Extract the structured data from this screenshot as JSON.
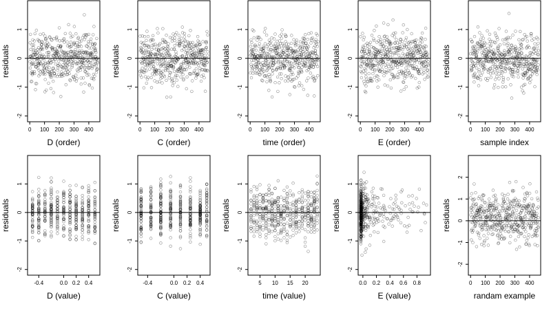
{
  "ylabel": "residuals",
  "chart_data": [
    {
      "type": "scatter",
      "xlabel": "D (order)",
      "ylabel": "residuals",
      "xlim": [
        -15,
        475
      ],
      "ylim": [
        -2.2,
        2.0
      ],
      "xticks": [
        0,
        100,
        200,
        300,
        400
      ],
      "yticks": [
        -2,
        -1,
        0,
        1
      ],
      "hline": 0,
      "n": 480,
      "pattern": "uniform"
    },
    {
      "type": "scatter",
      "xlabel": "C (order)",
      "ylabel": "residuals",
      "xlim": [
        -15,
        475
      ],
      "ylim": [
        -2.2,
        2.0
      ],
      "xticks": [
        0,
        100,
        200,
        300,
        400
      ],
      "yticks": [
        -2,
        -1,
        0,
        1
      ],
      "hline": 0,
      "n": 480,
      "pattern": "uniform"
    },
    {
      "type": "scatter",
      "xlabel": "time (order)",
      "ylabel": "residuals",
      "xlim": [
        -15,
        475
      ],
      "ylim": [
        -2.2,
        2.0
      ],
      "xticks": [
        0,
        100,
        200,
        300,
        400
      ],
      "yticks": [
        -2,
        -1,
        0,
        1
      ],
      "hline": 0,
      "n": 480,
      "pattern": "uniform"
    },
    {
      "type": "scatter",
      "xlabel": "E (order)",
      "ylabel": "residuals",
      "xlim": [
        -15,
        475
      ],
      "ylim": [
        -2.2,
        2.0
      ],
      "xticks": [
        0,
        100,
        200,
        300,
        400
      ],
      "yticks": [
        -2,
        -1,
        0,
        1
      ],
      "hline": 0,
      "n": 480,
      "pattern": "uniform"
    },
    {
      "type": "scatter",
      "xlabel": "sample index",
      "ylabel": "residuals",
      "xlim": [
        -15,
        475
      ],
      "ylim": [
        -2.2,
        2.0
      ],
      "xticks": [
        0,
        100,
        200,
        300,
        400
      ],
      "yticks": [
        -2,
        -1,
        0,
        1
      ],
      "hline": 0,
      "n": 480,
      "pattern": "uniform"
    },
    {
      "type": "scatter",
      "xlabel": "D (value)",
      "ylabel": "residuals",
      "xlim": [
        -0.58,
        0.58
      ],
      "ylim": [
        -2.2,
        2.0
      ],
      "xticks": [
        -0.4,
        0.0,
        0.2,
        0.4
      ],
      "xtick_labels": [
        "-0.4",
        "0.0",
        "0.2",
        "0.4"
      ],
      "yticks": [
        -2,
        -1,
        0,
        1
      ],
      "hline": 0,
      "n": 480,
      "pattern": "discrete",
      "levels": [
        -0.5,
        -0.4,
        -0.3,
        -0.2,
        -0.1,
        0.0,
        0.1,
        0.2,
        0.3,
        0.4,
        0.5
      ]
    },
    {
      "type": "scatter",
      "xlabel": "C (value)",
      "ylabel": "residuals",
      "xlim": [
        -0.55,
        0.55
      ],
      "ylim": [
        -2.2,
        2.0
      ],
      "xticks": [
        -0.4,
        0.0,
        0.2,
        0.4
      ],
      "xtick_labels": [
        "-0.4",
        "0.0",
        "0.2",
        "0.4"
      ],
      "yticks": [
        -2,
        -1,
        0,
        1
      ],
      "hline": 0,
      "n": 480,
      "pattern": "discrete",
      "levels": [
        -0.5,
        -0.35,
        -0.2,
        -0.05,
        0.1,
        0.25,
        0.4,
        0.5
      ]
    },
    {
      "type": "scatter",
      "xlabel": "time (value)",
      "ylabel": "residuals",
      "xlim": [
        1,
        25
      ],
      "ylim": [
        -2.2,
        2.0
      ],
      "xticks": [
        5,
        10,
        15,
        20
      ],
      "yticks": [
        -2,
        -1,
        0,
        1
      ],
      "hline": 0,
      "n": 480,
      "pattern": "discrete",
      "levels": [
        2,
        3,
        4,
        5,
        6,
        7,
        8,
        9,
        10,
        11,
        12,
        13,
        14,
        15,
        16,
        17,
        18,
        19,
        20,
        21,
        22,
        23,
        24
      ]
    },
    {
      "type": "scatter",
      "xlabel": "E (value)",
      "ylabel": "residuals",
      "xlim": [
        -0.07,
        1.0
      ],
      "ylim": [
        -2.2,
        2.0
      ],
      "xticks": [
        0.0,
        0.2,
        0.4,
        0.6,
        0.8
      ],
      "xtick_labels": [
        "0.0",
        "0.2",
        "0.4",
        "0.6",
        "0.8"
      ],
      "yticks": [
        -2,
        -1,
        0,
        1
      ],
      "hline": 0,
      "n": 480,
      "pattern": "skewed"
    },
    {
      "type": "scatter",
      "xlabel": "randam example",
      "ylabel": "residuals",
      "xlim": [
        -15,
        475
      ],
      "ylim": [
        -2.5,
        3.0
      ],
      "xticks": [
        0,
        100,
        200,
        300,
        400
      ],
      "yticks": [
        -2,
        -1,
        0,
        1,
        2
      ],
      "hline": 0,
      "n": 480,
      "pattern": "uniform"
    }
  ]
}
